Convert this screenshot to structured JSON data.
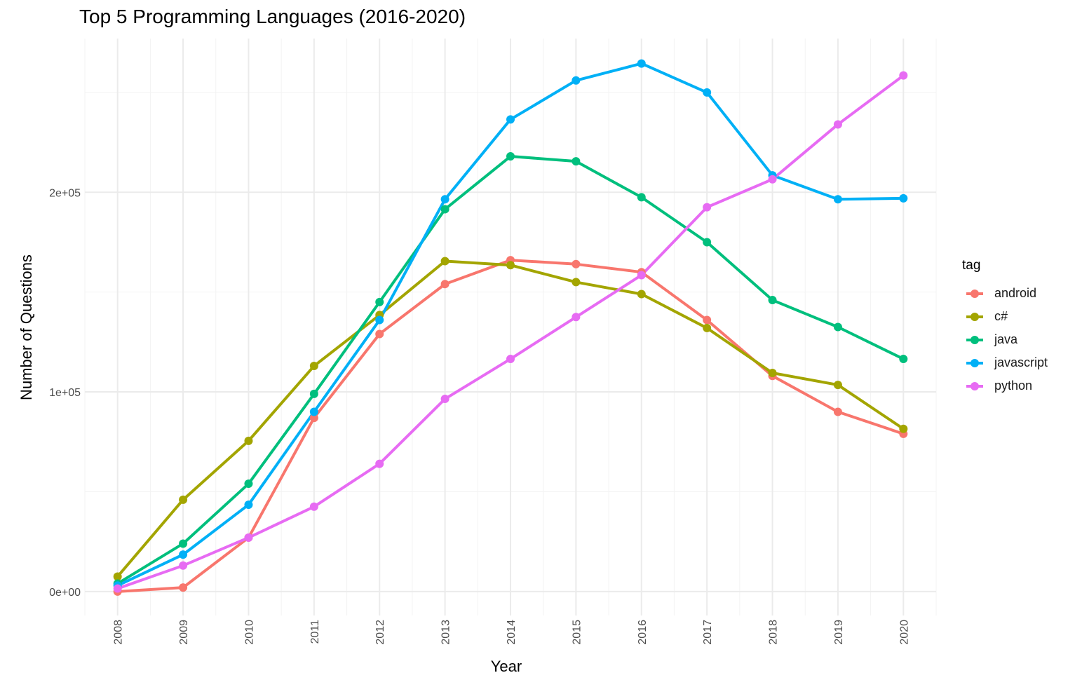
{
  "chart_data": {
    "type": "line",
    "title": "Top 5 Programming Languages (2016-2020)",
    "xlabel": "Year",
    "ylabel": "Number of Questions",
    "x": [
      2008,
      2009,
      2010,
      2011,
      2012,
      2013,
      2014,
      2015,
      2016,
      2017,
      2018,
      2019,
      2020
    ],
    "xlim": [
      2007.5,
      2020.5
    ],
    "ylim": [
      -12000,
      277000
    ],
    "y_ticks": [
      0,
      100000,
      200000
    ],
    "y_tick_labels": [
      "0e+00",
      "1e+05",
      "2e+05"
    ],
    "y_minor_ticks": [
      50000,
      150000,
      250000
    ],
    "grid": true,
    "legend_position": "right",
    "legend_title": "tag",
    "series": [
      {
        "name": "android",
        "color": "#F8766D",
        "values": [
          0,
          2000,
          27000,
          87000,
          129000,
          154000,
          166000,
          164000,
          160000,
          136000,
          108000,
          90000,
          79000
        ]
      },
      {
        "name": "c#",
        "color": "#A3A500",
        "values": [
          7500,
          46000,
          75500,
          113000,
          138500,
          165500,
          163500,
          155000,
          149000,
          132000,
          109500,
          103500,
          81500
        ]
      },
      {
        "name": "java",
        "color": "#00BF7D",
        "values": [
          4000,
          24000,
          54000,
          99000,
          145000,
          191500,
          218000,
          215500,
          197500,
          175000,
          146000,
          132500,
          116500
        ]
      },
      {
        "name": "javascript",
        "color": "#00B0F6",
        "values": [
          3000,
          18500,
          43500,
          90000,
          136000,
          196500,
          236500,
          256000,
          264500,
          250000,
          208500,
          196500,
          197000
        ]
      },
      {
        "name": "python",
        "color": "#E76BF3",
        "values": [
          1500,
          13000,
          27000,
          42500,
          64000,
          96500,
          116500,
          137500,
          158500,
          192500,
          206500,
          234000,
          258500
        ]
      }
    ]
  }
}
